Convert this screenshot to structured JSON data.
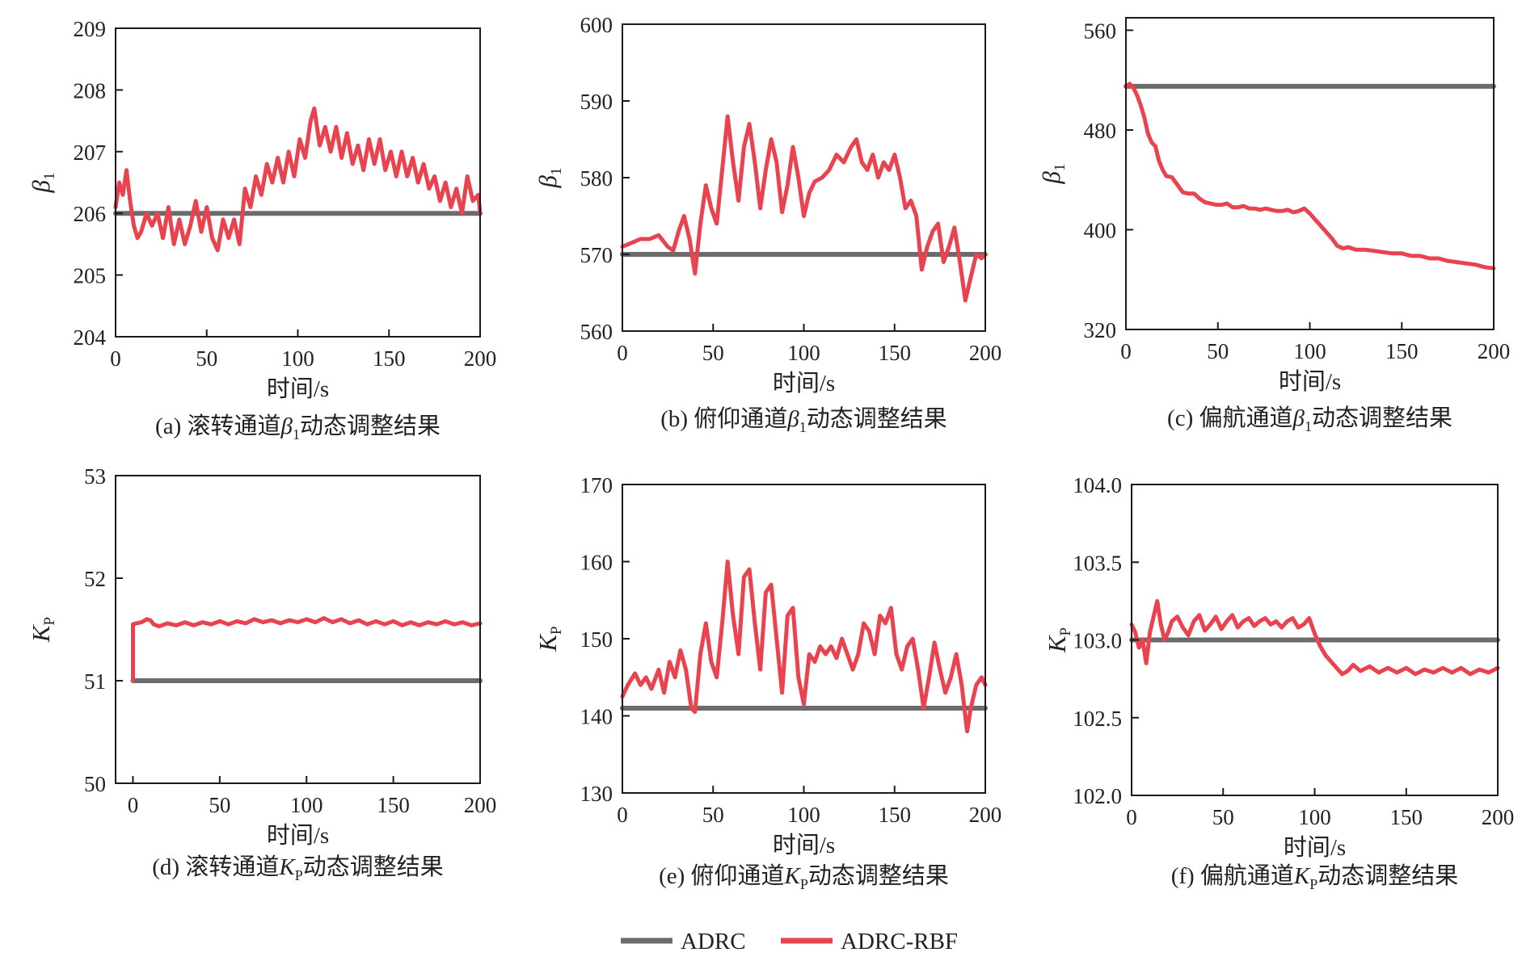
{
  "colors": {
    "ADRC": "#6b6b6b",
    "ADRC-RBF": "#e8434f",
    "axis": "#1a1a1a"
  },
  "legend": [
    {
      "name": "ADRC",
      "color": "#6b6b6b"
    },
    {
      "name": "ADRC-RBF",
      "color": "#e8434f"
    }
  ],
  "chart_data": [
    {
      "id": "a",
      "type": "line",
      "caption": {
        "prefix": "(a) 滚转通道",
        "symbol": "β",
        "sub": "1",
        "suffix": "动态调整结果"
      },
      "xlabel": "时间/s",
      "ylabel": {
        "symbol": "β",
        "sub": "1"
      },
      "xlim": [
        0,
        200
      ],
      "ylim": [
        204,
        209
      ],
      "xticks": [
        0,
        50,
        100,
        150,
        200
      ],
      "xtick_labels": [
        "0",
        "50",
        "100",
        "150",
        "200"
      ],
      "yticks": [
        204,
        205,
        206,
        207,
        208,
        209
      ],
      "ytick_labels": [
        "204",
        "205",
        "206",
        "207",
        "208",
        "209"
      ],
      "legend_position": "bottom-center",
      "grid": false,
      "series": [
        {
          "name": "ADRC",
          "x": [
            0,
            200
          ],
          "y": [
            206.0,
            206.0
          ]
        },
        {
          "name": "ADRC-RBF",
          "x": [
            0,
            2,
            4,
            6,
            8,
            10,
            12,
            14,
            17,
            20,
            23,
            26,
            29,
            32,
            35,
            38,
            41,
            44,
            47,
            50,
            53,
            56,
            59,
            62,
            65,
            68,
            71,
            74,
            77,
            80,
            83,
            86,
            89,
            92,
            95,
            98,
            101,
            104,
            107,
            109,
            112,
            115,
            118,
            121,
            124,
            127,
            130,
            133,
            136,
            139,
            142,
            145,
            148,
            151,
            154,
            157,
            160,
            163,
            166,
            169,
            172,
            175,
            178,
            181,
            184,
            187,
            190,
            193,
            196,
            199,
            200
          ],
          "y": [
            206.1,
            206.5,
            206.3,
            206.7,
            206.2,
            205.8,
            205.6,
            205.7,
            206.0,
            205.8,
            206.0,
            205.6,
            206.1,
            205.5,
            205.9,
            205.5,
            205.8,
            206.2,
            205.7,
            206.1,
            205.6,
            205.4,
            205.9,
            205.6,
            205.9,
            205.5,
            206.4,
            206.1,
            206.6,
            206.3,
            206.8,
            206.5,
            206.9,
            206.5,
            207.0,
            206.6,
            207.2,
            206.9,
            207.5,
            207.7,
            207.1,
            207.4,
            207.0,
            207.4,
            206.9,
            207.3,
            206.8,
            207.1,
            206.7,
            207.2,
            206.8,
            207.2,
            206.7,
            207.0,
            206.6,
            207.0,
            206.6,
            206.9,
            206.5,
            206.8,
            206.4,
            206.6,
            206.2,
            206.5,
            206.1,
            206.4,
            206.0,
            206.6,
            206.2,
            206.3,
            206.0
          ]
        }
      ]
    },
    {
      "id": "b",
      "type": "line",
      "caption": {
        "prefix": "(b) 俯仰通道",
        "symbol": "β",
        "sub": "1",
        "suffix": "动态调整结果"
      },
      "xlabel": "时间/s",
      "ylabel": {
        "symbol": "β",
        "sub": "1"
      },
      "xlim": [
        0,
        200
      ],
      "ylim": [
        560,
        600
      ],
      "xticks": [
        0,
        50,
        100,
        150,
        200
      ],
      "xtick_labels": [
        "0",
        "50",
        "100",
        "150",
        "200"
      ],
      "yticks": [
        560,
        570,
        580,
        590,
        600
      ],
      "ytick_labels": [
        "560",
        "570",
        "580",
        "590",
        "600"
      ],
      "legend_position": "bottom-center",
      "grid": false,
      "series": [
        {
          "name": "ADRC",
          "x": [
            0,
            200
          ],
          "y": [
            570,
            570
          ]
        },
        {
          "name": "ADRC-RBF",
          "x": [
            0,
            5,
            10,
            15,
            20,
            25,
            28,
            31,
            34,
            37,
            40,
            43,
            46,
            49,
            52,
            55,
            58,
            61,
            64,
            67,
            70,
            73,
            76,
            79,
            82,
            85,
            88,
            91,
            94,
            97,
            100,
            103,
            106,
            110,
            114,
            118,
            122,
            126,
            129,
            132,
            135,
            138,
            141,
            144,
            147,
            150,
            153,
            156,
            159,
            162,
            165,
            168,
            171,
            174,
            177,
            180,
            183,
            186,
            189,
            192,
            195,
            198,
            200
          ],
          "y": [
            571,
            571.5,
            572,
            572,
            572.5,
            571,
            570.5,
            573,
            575,
            572,
            567.5,
            574,
            579,
            576,
            574,
            581,
            588,
            582,
            577,
            584,
            587,
            582,
            576,
            581,
            585,
            582,
            575.5,
            579,
            584,
            580,
            575,
            578,
            579.5,
            580,
            581,
            583,
            582,
            584,
            585,
            582,
            581,
            583,
            580,
            582,
            581,
            583,
            580,
            576,
            577,
            575,
            568,
            571,
            573,
            574,
            569,
            571,
            573.5,
            569,
            564,
            567,
            570,
            569.5,
            570
          ]
        }
      ]
    },
    {
      "id": "c",
      "type": "line",
      "caption": {
        "prefix": "(c) 偏航通道",
        "symbol": "β",
        "sub": "1",
        "suffix": "动态调整结果"
      },
      "xlabel": "时间/s",
      "ylabel": {
        "symbol": "β",
        "sub": "1"
      },
      "xlim": [
        0,
        200
      ],
      "ylim": [
        320,
        570
      ],
      "xticks": [
        0,
        50,
        100,
        150,
        200
      ],
      "xtick_labels": [
        "0",
        "50",
        "100",
        "150",
        "200"
      ],
      "yticks": [
        320,
        400,
        480,
        560
      ],
      "ytick_labels": [
        "320",
        "400",
        "480",
        "560"
      ],
      "legend_position": "bottom-center",
      "grid": false,
      "series": [
        {
          "name": "ADRC",
          "x": [
            0,
            200
          ],
          "y": [
            515,
            515
          ]
        },
        {
          "name": "ADRC-RBF",
          "x": [
            0,
            2,
            4,
            6,
            8,
            10,
            12,
            14,
            16,
            18,
            20,
            22,
            25,
            28,
            31,
            34,
            37,
            40,
            43,
            46,
            49,
            52,
            55,
            58,
            61,
            64,
            67,
            70,
            73,
            76,
            79,
            82,
            85,
            88,
            91,
            94,
            97,
            100,
            103,
            106,
            109,
            112,
            115,
            118,
            121,
            125,
            130,
            135,
            140,
            145,
            150,
            155,
            160,
            165,
            170,
            175,
            180,
            185,
            190,
            195,
            200
          ],
          "y": [
            515,
            517,
            514,
            508,
            500,
            490,
            477,
            470,
            467,
            455,
            448,
            443,
            442,
            436,
            430,
            429,
            429,
            425,
            422,
            421,
            420,
            420,
            421,
            418,
            418,
            419,
            417,
            417,
            416,
            417,
            416,
            415,
            415,
            416,
            414,
            415,
            417,
            413,
            408,
            403,
            398,
            393,
            387,
            385,
            386,
            384,
            384,
            383,
            382,
            381,
            381,
            379,
            379,
            377,
            377,
            375,
            374,
            373,
            372,
            370,
            369
          ]
        }
      ]
    },
    {
      "id": "d",
      "type": "line",
      "caption": {
        "prefix": "(d) 滚转通道",
        "symbol": "K",
        "sub": "P",
        "suffix": "动态调整结果"
      },
      "xlabel": "时间/s",
      "ylabel": {
        "symbol": "K",
        "sub": "P"
      },
      "xlim": [
        -10,
        200
      ],
      "ylim": [
        50,
        53
      ],
      "xticks": [
        0,
        50,
        100,
        150,
        200
      ],
      "xtick_labels": [
        "0",
        "50",
        "100",
        "150",
        "200"
      ],
      "yticks": [
        50,
        51,
        52,
        53
      ],
      "ytick_labels": [
        "50",
        "51",
        "52",
        "53"
      ],
      "legend_position": "bottom-center",
      "grid": false,
      "series": [
        {
          "name": "ADRC",
          "x": [
            0,
            200
          ],
          "y": [
            51.0,
            51.0
          ]
        },
        {
          "name": "ADRC-RBF",
          "x": [
            0,
            0,
            2,
            5,
            8,
            10,
            12,
            15,
            20,
            25,
            30,
            35,
            40,
            45,
            50,
            55,
            60,
            65,
            70,
            75,
            80,
            85,
            90,
            95,
            100,
            105,
            110,
            115,
            120,
            125,
            130,
            135,
            140,
            145,
            150,
            155,
            160,
            165,
            170,
            175,
            180,
            185,
            190,
            195,
            200
          ],
          "y": [
            51.0,
            51.55,
            51.56,
            51.57,
            51.6,
            51.59,
            51.55,
            51.53,
            51.56,
            51.54,
            51.57,
            51.54,
            51.57,
            51.55,
            51.58,
            51.55,
            51.58,
            51.56,
            51.6,
            51.57,
            51.59,
            51.56,
            51.59,
            51.57,
            51.6,
            51.57,
            51.61,
            51.57,
            51.6,
            51.56,
            51.59,
            51.55,
            51.58,
            51.55,
            51.58,
            51.54,
            51.57,
            51.54,
            51.57,
            51.55,
            51.58,
            51.55,
            51.57,
            51.54,
            51.56
          ]
        }
      ]
    },
    {
      "id": "e",
      "type": "line",
      "caption": {
        "prefix": "(e) 俯仰通道",
        "symbol": "K",
        "sub": "P",
        "suffix": "动态调整结果"
      },
      "xlabel": "时间/s",
      "ylabel": {
        "symbol": "K",
        "sub": "P"
      },
      "xlim": [
        0,
        200
      ],
      "ylim": [
        130,
        170
      ],
      "xticks": [
        0,
        50,
        100,
        150,
        200
      ],
      "xtick_labels": [
        "0",
        "50",
        "100",
        "150",
        "200"
      ],
      "yticks": [
        130,
        140,
        150,
        160,
        170
      ],
      "ytick_labels": [
        "130",
        "140",
        "150",
        "160",
        "170"
      ],
      "legend_position": "bottom-center",
      "grid": false,
      "series": [
        {
          "name": "ADRC",
          "x": [
            0,
            200
          ],
          "y": [
            141,
            141
          ]
        },
        {
          "name": "ADRC-RBF",
          "x": [
            0,
            3,
            7,
            10,
            13,
            16,
            20,
            23,
            26,
            29,
            32,
            35,
            38,
            40,
            43,
            46,
            49,
            52,
            55,
            58,
            61,
            64,
            67,
            70,
            73,
            76,
            79,
            82,
            85,
            88,
            91,
            94,
            97,
            100,
            103,
            106,
            109,
            112,
            115,
            118,
            121,
            124,
            127,
            130,
            133,
            136,
            139,
            142,
            145,
            148,
            151,
            154,
            157,
            160,
            163,
            166,
            169,
            172,
            175,
            178,
            181,
            184,
            187,
            190,
            192,
            195,
            198,
            200
          ],
          "y": [
            142.5,
            144,
            145.5,
            144,
            145,
            143.5,
            146,
            143,
            147,
            145,
            148.5,
            146,
            141,
            140.5,
            148,
            152,
            147,
            145,
            152,
            160,
            153,
            148,
            158,
            159,
            152,
            146,
            156,
            157,
            150,
            143,
            153,
            154,
            145,
            141.5,
            148,
            147,
            149,
            148,
            149,
            147.5,
            150,
            148,
            146,
            148,
            152,
            151,
            148,
            153,
            152,
            154,
            148,
            146,
            149,
            150,
            146,
            141,
            145,
            149.5,
            146,
            143,
            145,
            148,
            144,
            138,
            141,
            144,
            145,
            144
          ]
        }
      ]
    },
    {
      "id": "f",
      "type": "line",
      "caption": {
        "prefix": "(f) 偏航通道",
        "symbol": "K",
        "sub": "P",
        "suffix": "动态调整结果"
      },
      "xlabel": "时间/s",
      "ylabel": {
        "symbol": "K",
        "sub": "P"
      },
      "xlim": [
        0,
        200
      ],
      "ylim": [
        102.0,
        104.0
      ],
      "xticks": [
        0,
        50,
        100,
        150,
        200
      ],
      "xtick_labels": [
        "0",
        "50",
        "100",
        "150",
        "200"
      ],
      "yticks": [
        102.0,
        102.5,
        103.0,
        103.5,
        104.0
      ],
      "ytick_labels": [
        "102.0",
        "102.5",
        "103.0",
        "103.5",
        "104.0"
      ],
      "legend_position": "bottom-center",
      "grid": false,
      "series": [
        {
          "name": "ADRC",
          "x": [
            0,
            200
          ],
          "y": [
            103.0,
            103.0
          ]
        },
        {
          "name": "ADRC-RBF",
          "x": [
            0,
            2,
            4,
            6,
            8,
            10,
            12,
            14,
            16,
            18,
            20,
            22,
            25,
            28,
            31,
            34,
            37,
            40,
            43,
            46,
            49,
            52,
            55,
            58,
            61,
            64,
            67,
            70,
            73,
            76,
            79,
            82,
            85,
            88,
            91,
            94,
            97,
            100,
            103,
            106,
            109,
            112,
            115,
            118,
            121,
            125,
            130,
            135,
            140,
            145,
            150,
            155,
            160,
            165,
            170,
            175,
            180,
            185,
            190,
            195,
            200
          ],
          "y": [
            103.1,
            103.05,
            102.95,
            103.0,
            102.85,
            103.05,
            103.15,
            103.25,
            103.1,
            103.0,
            103.05,
            103.12,
            103.15,
            103.08,
            103.03,
            103.12,
            103.16,
            103.06,
            103.1,
            103.15,
            103.07,
            103.12,
            103.16,
            103.08,
            103.12,
            103.14,
            103.09,
            103.12,
            103.14,
            103.1,
            103.12,
            103.08,
            103.12,
            103.14,
            103.08,
            103.1,
            103.14,
            103.04,
            102.96,
            102.9,
            102.86,
            102.82,
            102.78,
            102.8,
            102.84,
            102.8,
            102.83,
            102.79,
            102.82,
            102.79,
            102.82,
            102.78,
            102.81,
            102.79,
            102.82,
            102.79,
            102.82,
            102.78,
            102.81,
            102.79,
            102.82
          ]
        }
      ]
    }
  ]
}
